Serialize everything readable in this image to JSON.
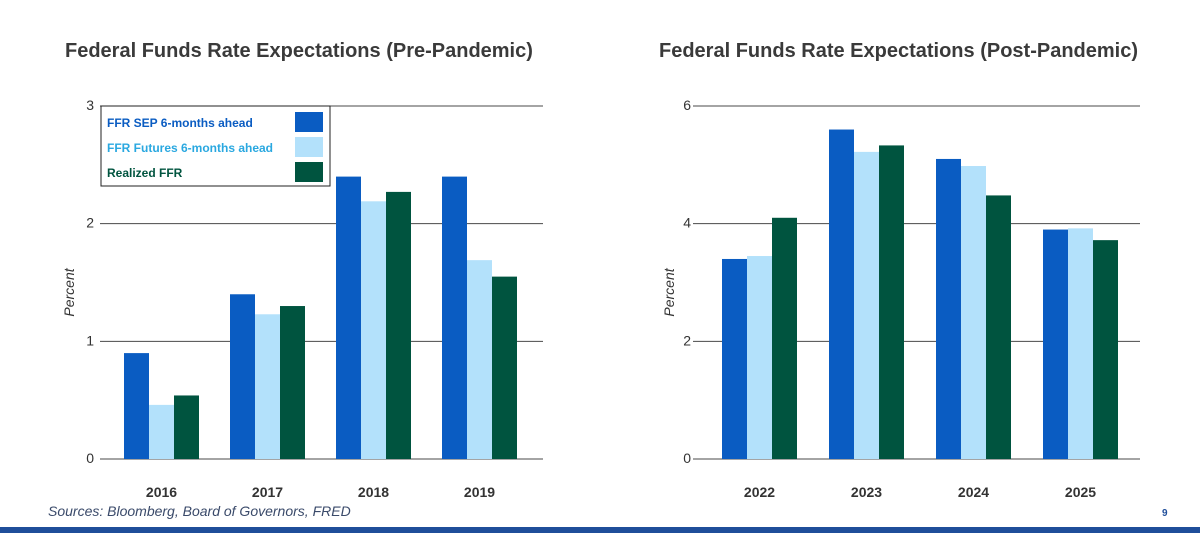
{
  "chart_data": [
    {
      "type": "bar",
      "title": "Federal Funds Rate Expectations (Pre-Pandemic)",
      "categories": [
        "2016",
        "2017",
        "2018",
        "2019"
      ],
      "series": [
        {
          "name": "FFR SEP 6-months ahead",
          "color": "#0a5cc2",
          "values": [
            0.9,
            1.4,
            2.4,
            2.4
          ]
        },
        {
          "name": "FFR Futures 6-months ahead",
          "color": "#b3e1fb",
          "values": [
            0.46,
            1.23,
            2.19,
            1.69
          ]
        },
        {
          "name": "Realized FFR",
          "color": "#00543f",
          "values": [
            0.54,
            1.3,
            2.27,
            1.55
          ]
        }
      ],
      "ylabel": "Percent",
      "ylim": [
        0,
        3
      ],
      "yticks": [
        "0",
        "1",
        "2",
        "3"
      ],
      "legend": "top-left"
    },
    {
      "type": "bar",
      "title": "Federal Funds Rate Expectations (Post-Pandemic)",
      "categories": [
        "2022",
        "2023",
        "2024",
        "2025"
      ],
      "series": [
        {
          "name": "FFR SEP 6-months ahead",
          "color": "#0a5cc2",
          "values": [
            3.4,
            5.6,
            5.1,
            3.9
          ]
        },
        {
          "name": "FFR Futures 6-months ahead",
          "color": "#b3e1fb",
          "values": [
            3.45,
            5.22,
            4.98,
            3.92
          ]
        },
        {
          "name": "Realized FFR",
          "color": "#00543f",
          "values": [
            4.1,
            5.33,
            4.48,
            3.72
          ]
        }
      ],
      "ylabel": "Percent",
      "ylim": [
        0,
        6
      ],
      "yticks": [
        "0",
        "2",
        "4",
        "6"
      ]
    }
  ],
  "footer": {
    "source": "Sources: Bloomberg, Board of Governors, FRED",
    "page_number": "9"
  },
  "colors": {
    "grid": "#4a4a4a",
    "title": "#3a3a3a",
    "accent": "#1f4e9a"
  }
}
